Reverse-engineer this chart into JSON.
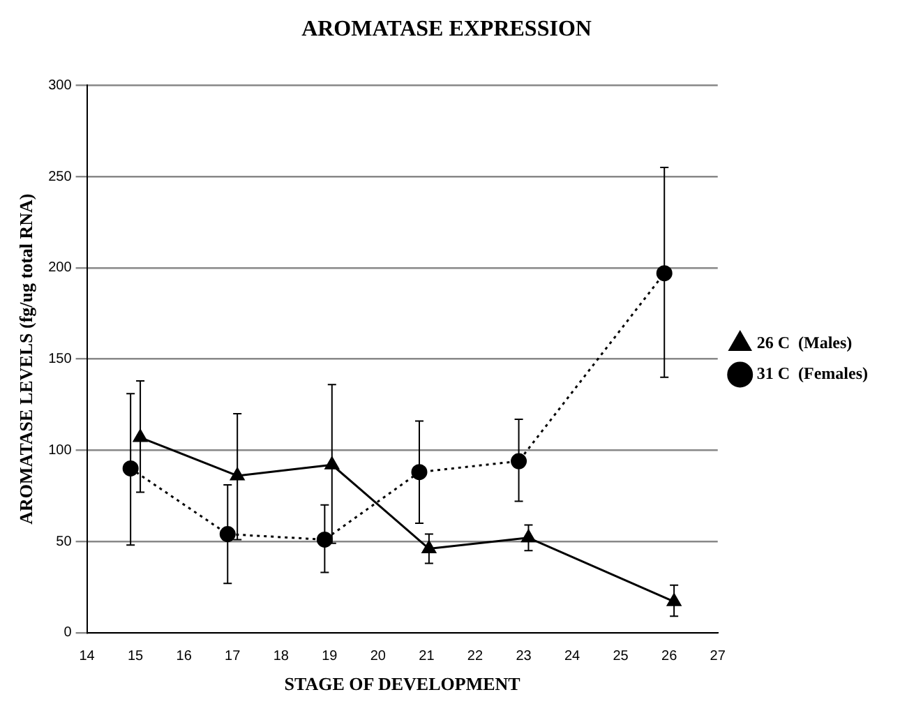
{
  "chart_data": {
    "type": "line",
    "title": "AROMATASE EXPRESSION",
    "xlabel": "STAGE OF DEVELOPMENT",
    "ylabel": "AROMATASE LEVELS (fg/ug total RNA)",
    "xlim": [
      14,
      27
    ],
    "xticks": [
      14,
      15,
      16,
      17,
      18,
      19,
      20,
      21,
      22,
      23,
      24,
      25,
      26,
      27
    ],
    "ylim": [
      0,
      300
    ],
    "yticks": [
      0,
      50,
      100,
      150,
      200,
      250,
      300
    ],
    "grid": "y",
    "legend": "right",
    "series": [
      {
        "name": "26 C  (Males)",
        "color": "#000000",
        "marker": "triangle",
        "line_style": "solid",
        "x": [
          15.1,
          17.1,
          19.05,
          21.05,
          23.1,
          26.1
        ],
        "values": [
          107,
          86,
          92,
          46,
          52,
          17
        ],
        "errors": [
          [
            77,
            138
          ],
          [
            51,
            120
          ],
          [
            49,
            136
          ],
          [
            38,
            54
          ],
          [
            45,
            59
          ],
          [
            9,
            26
          ]
        ]
      },
      {
        "name": "31 C  (Females)",
        "color": "#000000",
        "marker": "circle",
        "line_style": "dotted",
        "x": [
          14.9,
          16.9,
          18.9,
          20.85,
          22.9,
          25.9
        ],
        "values": [
          90,
          54,
          51,
          88,
          94,
          197
        ],
        "errors": [
          [
            48,
            131
          ],
          [
            27,
            81
          ],
          [
            33,
            70
          ],
          [
            60,
            116
          ],
          [
            72,
            117
          ],
          [
            140,
            255
          ]
        ]
      }
    ]
  }
}
